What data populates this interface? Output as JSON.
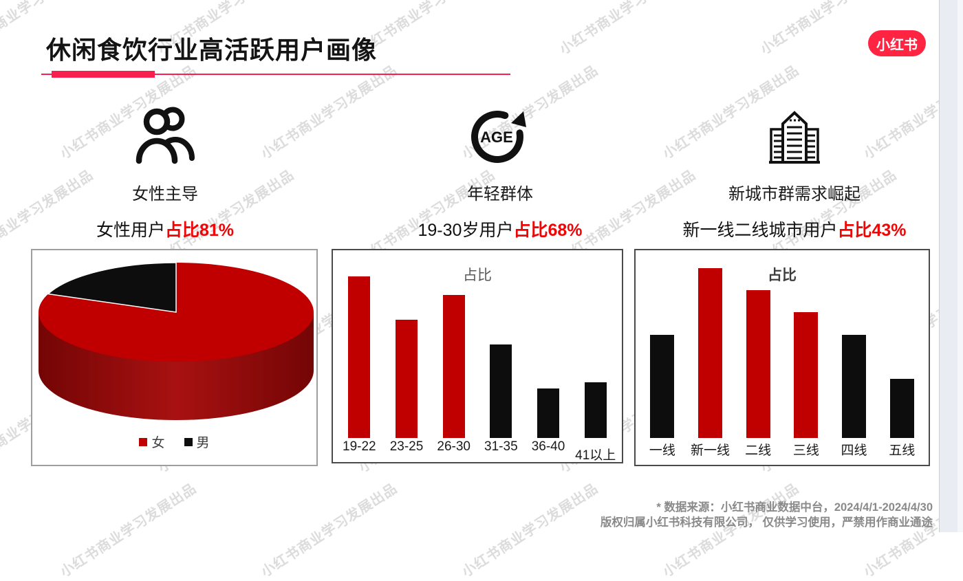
{
  "header": {
    "title": "休闲食饮行业高活跃用户画像",
    "accent_color": "#F91F4C"
  },
  "logo": {
    "text": "小红书",
    "color": "#FF2442"
  },
  "watermark": {
    "text": "小红书商业学习发展出品"
  },
  "highlight_color": "#EE0505",
  "features": [
    {
      "icon": "people-icon",
      "heading": "女性主导",
      "desc_prefix": "女性用户",
      "desc_highlight": "占比81%"
    },
    {
      "icon": "age-icon",
      "heading": "年轻群体",
      "desc_prefix": "19-30岁用户",
      "desc_highlight": "占比68%"
    },
    {
      "icon": "buildings-icon",
      "heading": "新城市群需求崛起",
      "desc_prefix": "新一线二线城市用户",
      "desc_highlight": "占比43%"
    }
  ],
  "chart_data": [
    {
      "type": "pie",
      "effect": "3d",
      "labels": [
        "女",
        "男"
      ],
      "values": [
        81,
        19
      ],
      "colors": [
        "#C00000",
        "#0d0d0d"
      ],
      "side_color_dark": "#740505",
      "side_color_light": "#A81111",
      "legend_position": "bottom"
    },
    {
      "type": "bar",
      "title": "占比",
      "categories": [
        "19-22",
        "23-25",
        "26-30",
        "31-35",
        "36-40",
        "41以上"
      ],
      "values": [
        26,
        19,
        23,
        15,
        8,
        9
      ],
      "colors": [
        "#C00000",
        "#C00000",
        "#C00000",
        "#0d0d0d",
        "#0d0d0d",
        "#0d0d0d"
      ],
      "label_offsets": [
        0,
        0,
        0,
        0,
        0,
        8
      ],
      "xlabel": "",
      "ylabel": "",
      "ylim": [
        0,
        26
      ],
      "grid": false,
      "legend_position": "none"
    },
    {
      "type": "bar",
      "title": "占比",
      "categories": [
        "一线",
        "新一线",
        "二线",
        "三线",
        "四线",
        "五线"
      ],
      "values": [
        14,
        23,
        20,
        17,
        14,
        8
      ],
      "colors": [
        "#0d0d0d",
        "#C00000",
        "#C00000",
        "#C00000",
        "#0d0d0d",
        "#0d0d0d"
      ],
      "label_offsets": [
        0,
        0,
        0,
        0,
        0,
        0
      ],
      "xlabel": "",
      "ylabel": "",
      "ylim": [
        0,
        23
      ],
      "grid": false,
      "legend_position": "none"
    }
  ],
  "footer": {
    "line1": "* 数据来源：小红书商业数据中台，2024/4/1-2024/4/30",
    "line2": "版权归属小红书科技有限公司， 仅供学习使用，严禁用作商业通途"
  }
}
